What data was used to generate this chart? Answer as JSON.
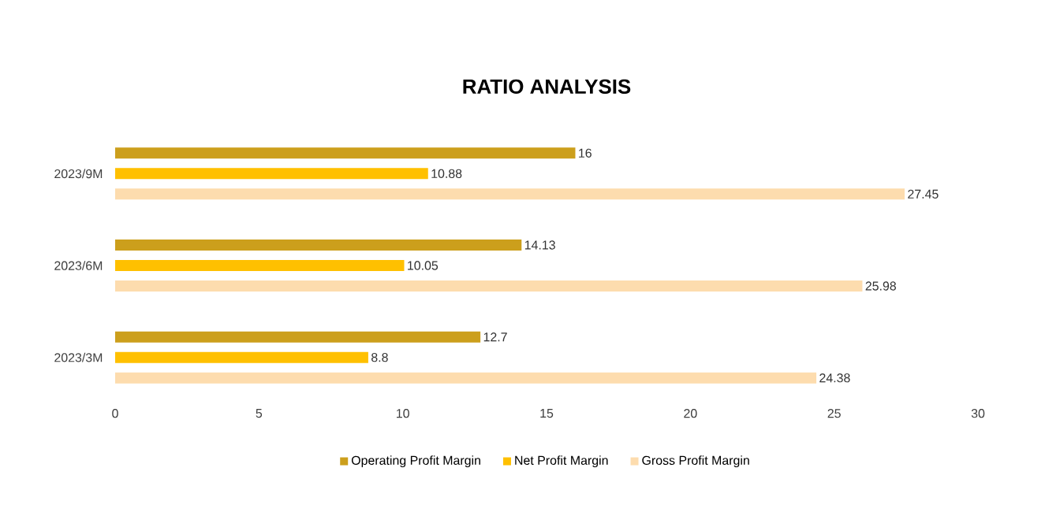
{
  "chart_data": {
    "type": "bar",
    "orientation": "horizontal",
    "title": "RATIO ANALYSIS",
    "categories": [
      "2023/9M",
      "2023/6M",
      "2023/3M"
    ],
    "series": [
      {
        "name": "Operating Profit Margin",
        "color": "#cc9f1c",
        "values": [
          16,
          14.13,
          12.7
        ]
      },
      {
        "name": "Net Profit Margin",
        "color": "#ffc000",
        "values": [
          10.88,
          10.05,
          8.8
        ]
      },
      {
        "name": "Gross Profit Margin",
        "color": "#fddcae",
        "values": [
          27.45,
          25.98,
          24.38
        ]
      }
    ],
    "xlim": [
      0,
      30
    ],
    "xticks": [
      0,
      5,
      10,
      15,
      20,
      25,
      30
    ],
    "data_labels": true,
    "legend": "bottom",
    "grid": false
  }
}
